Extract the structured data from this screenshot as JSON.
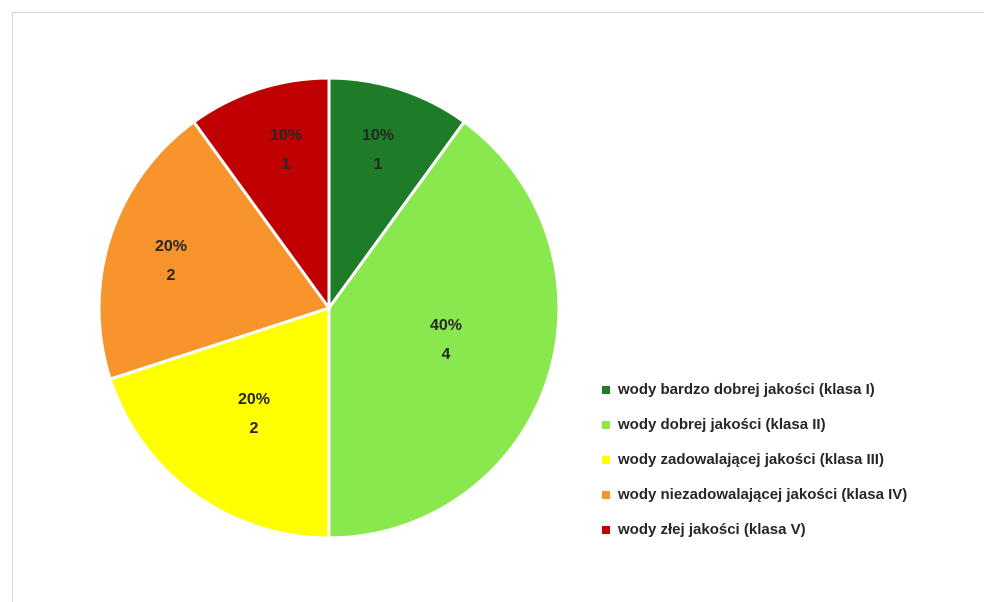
{
  "chart_data": {
    "type": "pie",
    "title": "",
    "categories": [
      "wody bardzo dobrej jakości (klasa I)",
      "wody dobrej jakości (klasa II)",
      "wody zadowalającej jakości (klasa III)",
      "wody niezadowalającej jakości (klasa IV)",
      "wody złej jakości (klasa V)"
    ],
    "values": [
      1,
      4,
      2,
      2,
      1
    ],
    "percent_labels": [
      "10%",
      "40%",
      "20%",
      "20%",
      "10%"
    ],
    "value_labels": [
      "1",
      "4",
      "2",
      "2",
      "1"
    ],
    "colors": [
      "#1e7b28",
      "#8ae84f",
      "#ffff00",
      "#f7942b",
      "#c00000"
    ],
    "legend_position": "right"
  }
}
